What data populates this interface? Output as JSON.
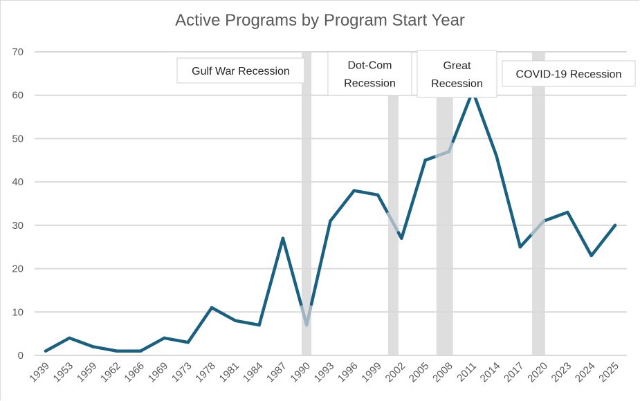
{
  "chart_data": {
    "type": "line",
    "title": "Active Programs by Program Start Year",
    "xlabel": "",
    "ylabel": "",
    "ylim": [
      0,
      70
    ],
    "yticks": [
      0,
      10,
      20,
      30,
      40,
      50,
      60,
      70
    ],
    "grid": true,
    "legend": "none",
    "categories": [
      "1939",
      "1953",
      "1959",
      "1962",
      "1966",
      "1969",
      "1973",
      "1978",
      "1981",
      "1984",
      "1987",
      "1990",
      "1993",
      "1996",
      "1999",
      "2002",
      "2005",
      "2008",
      "2011",
      "2014",
      "2017",
      "2020",
      "2023",
      "2024",
      "2025"
    ],
    "series": [
      {
        "name": "Active Programs",
        "color": "#1a6080",
        "values": [
          1,
          4,
          2,
          1,
          1,
          4,
          3,
          11,
          8,
          7,
          27,
          7,
          31,
          38,
          37,
          27,
          45,
          47,
          61,
          46,
          25,
          31,
          33,
          23,
          30
        ]
      }
    ],
    "recession_color": "#dedede",
    "recession_line_color": "#9fb6c2",
    "recessions": [
      {
        "label": "Gulf War Recession",
        "start_index": 10.79,
        "end_index": 11.2
      },
      {
        "label": "Dot-Com Recession",
        "start_index": 14.43,
        "end_index": 14.87
      },
      {
        "label": "Great Recession",
        "start_index": 16.47,
        "end_index": 17.17
      },
      {
        "label": "COVID-19 Recession",
        "start_index": 20.5,
        "end_index": 21.05
      }
    ],
    "annotations": [
      {
        "lines": [
          "Gulf War Recession"
        ]
      },
      {
        "lines": [
          "Dot-Com",
          "Recession"
        ]
      },
      {
        "lines": [
          "Great",
          "Recession"
        ]
      },
      {
        "lines": [
          "COVID-19 Recession"
        ]
      }
    ]
  }
}
